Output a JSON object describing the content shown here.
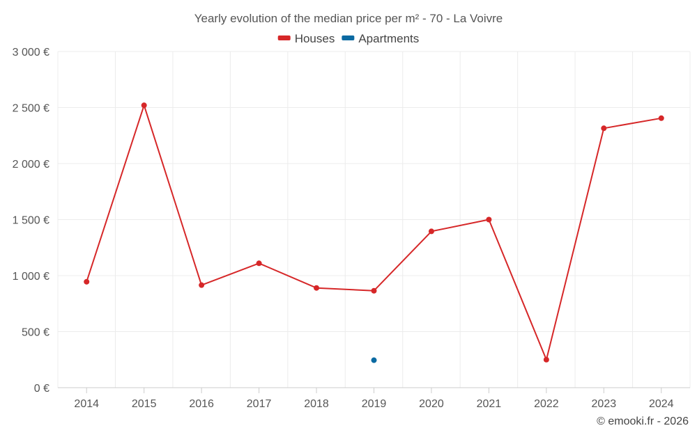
{
  "chart_data": {
    "type": "line",
    "title": "Yearly evolution of the median price per m² - 70 - La Voivre",
    "categories": [
      "2014",
      "2015",
      "2016",
      "2017",
      "2018",
      "2019",
      "2020",
      "2021",
      "2022",
      "2023",
      "2024"
    ],
    "series": [
      {
        "name": "Houses",
        "color": "#d62728",
        "values": [
          945,
          2520,
          915,
          1110,
          890,
          865,
          1395,
          1500,
          250,
          2315,
          2405
        ]
      },
      {
        "name": "Apartments",
        "color": "#0b6aa2",
        "values": [
          null,
          null,
          null,
          null,
          null,
          245,
          null,
          null,
          null,
          null,
          null
        ]
      }
    ],
    "y_ticks": [
      {
        "value": 0,
        "label": "0 €"
      },
      {
        "value": 500,
        "label": "500 €"
      },
      {
        "value": 1000,
        "label": "1 000 €"
      },
      {
        "value": 1500,
        "label": "1 500 €"
      },
      {
        "value": 2000,
        "label": "2 000 €"
      },
      {
        "value": 2500,
        "label": "2 500 €"
      },
      {
        "value": 3000,
        "label": "3 000 €"
      }
    ],
    "ylim": [
      0,
      3000
    ],
    "grid": true,
    "legend": "top-center",
    "xlabel": "",
    "ylabel": ""
  },
  "credit": "© emooki.fr - 2026"
}
